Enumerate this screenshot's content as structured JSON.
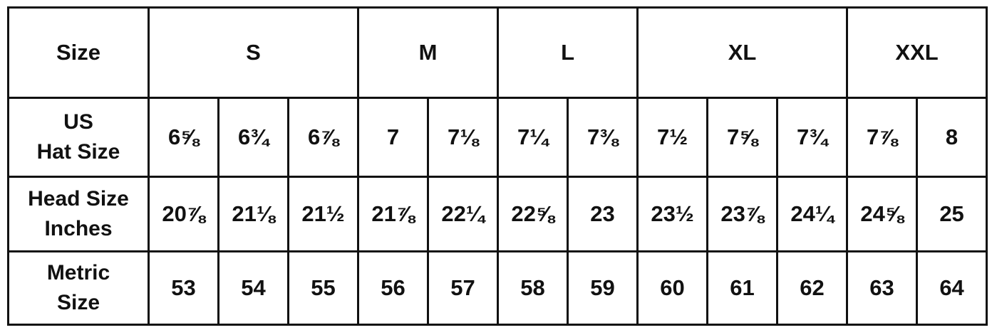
{
  "table": {
    "header": {
      "label": "Size",
      "groups": [
        {
          "label": "S",
          "span": 3
        },
        {
          "label": "M",
          "span": 2
        },
        {
          "label": "L",
          "span": 2
        },
        {
          "label": "XL",
          "span": 3
        },
        {
          "label": "XXL",
          "span": 2
        }
      ]
    },
    "rows": [
      {
        "label_line1": "US",
        "label_line2": "Hat Size",
        "values": [
          "6⅝",
          "6¾",
          "6⅞",
          "7",
          "7⅛",
          "7¼",
          "7⅜",
          "7½",
          "7⅝",
          "7¾",
          "7⅞",
          "8"
        ]
      },
      {
        "label_line1": "Head Size",
        "label_line2": "Inches",
        "values": [
          "20⅞",
          "21⅛",
          "21½",
          "21⅞",
          "22¼",
          "22⅝",
          "23",
          "23½",
          "23⅞",
          "24¼",
          "24⅝",
          "25"
        ]
      },
      {
        "label_line1": "Metric",
        "label_line2": "Size",
        "values": [
          "53",
          "54",
          "55",
          "56",
          "57",
          "58",
          "59",
          "60",
          "61",
          "62",
          "63",
          "64"
        ]
      }
    ]
  }
}
